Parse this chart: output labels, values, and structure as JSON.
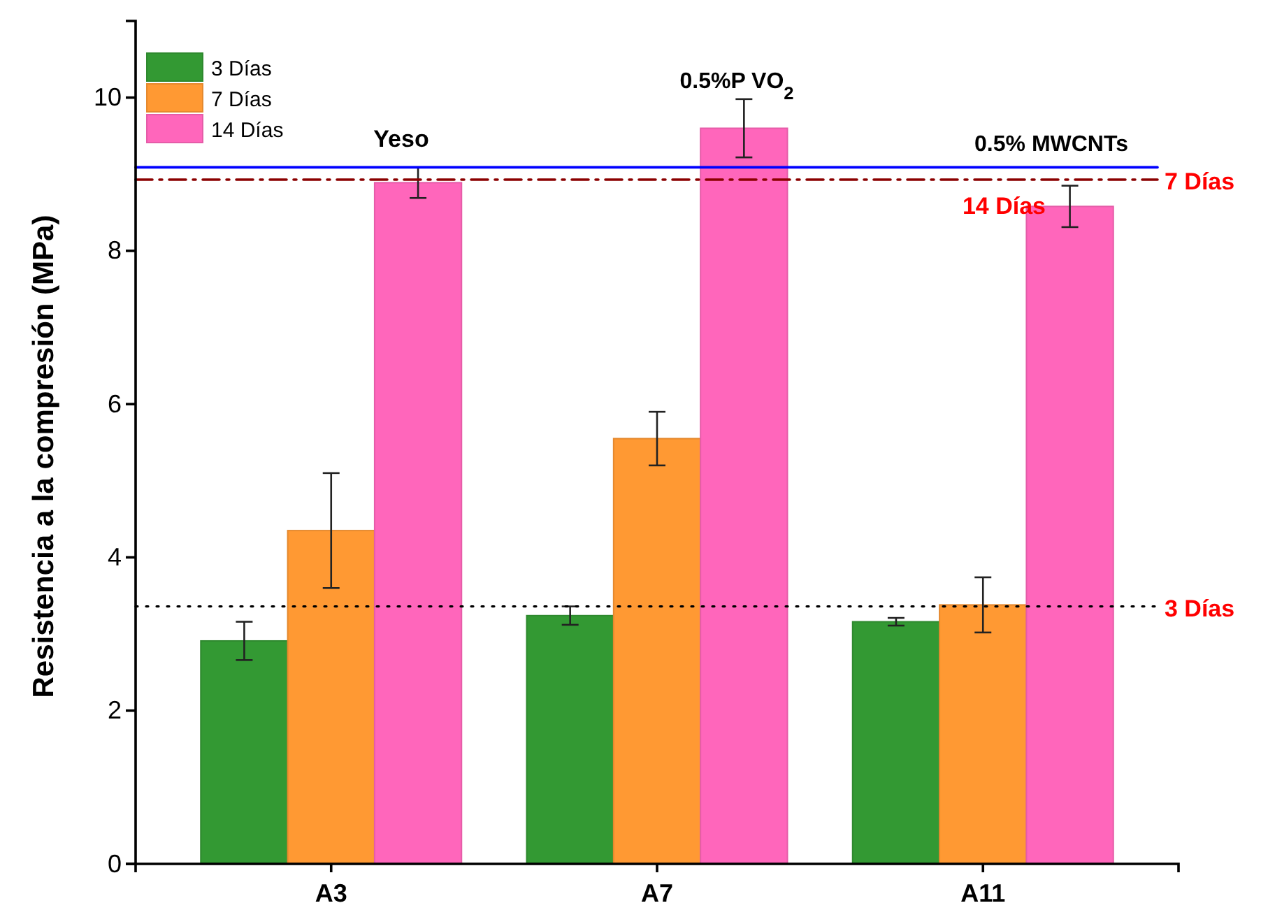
{
  "chart_data": {
    "type": "bar",
    "ylabel": "Resistencia a la compresión (MPa)",
    "categories": [
      "A3",
      "A7",
      "A11"
    ],
    "series": [
      {
        "name": "3 Días",
        "color": "#339933",
        "values": [
          2.91,
          3.24,
          3.16
        ],
        "errors": [
          0.25,
          0.12,
          0.05
        ]
      },
      {
        "name": "7 Días",
        "color": "#ff9933",
        "values": [
          4.35,
          5.55,
          3.38
        ],
        "errors": [
          0.75,
          0.35,
          0.36
        ]
      },
      {
        "name": "14 Días",
        "color": "#ff66bb",
        "values": [
          8.89,
          9.6,
          8.58
        ],
        "errors": [
          0.2,
          0.38,
          0.27
        ]
      }
    ],
    "ylim": [
      0,
      11
    ],
    "yticks": [
      0,
      2,
      4,
      6,
      8,
      10
    ],
    "grid": false,
    "legend": "top left",
    "ref_lines": [
      {
        "axis": "y",
        "value": 9.09,
        "color": "#0000ff",
        "line_style": "solid"
      },
      {
        "axis": "y",
        "value": 8.93,
        "label": "7 Días",
        "color": "#8b0000",
        "line_style": "dashdot"
      },
      {
        "axis": "y",
        "value": 3.36,
        "label": "3 Días",
        "color": "#000000",
        "line_style": "dotted"
      }
    ],
    "annotations": [
      "Yeso",
      "0.5%P VO$_{2}$",
      "0.5% MWCNTs",
      "14 Días"
    ]
  }
}
